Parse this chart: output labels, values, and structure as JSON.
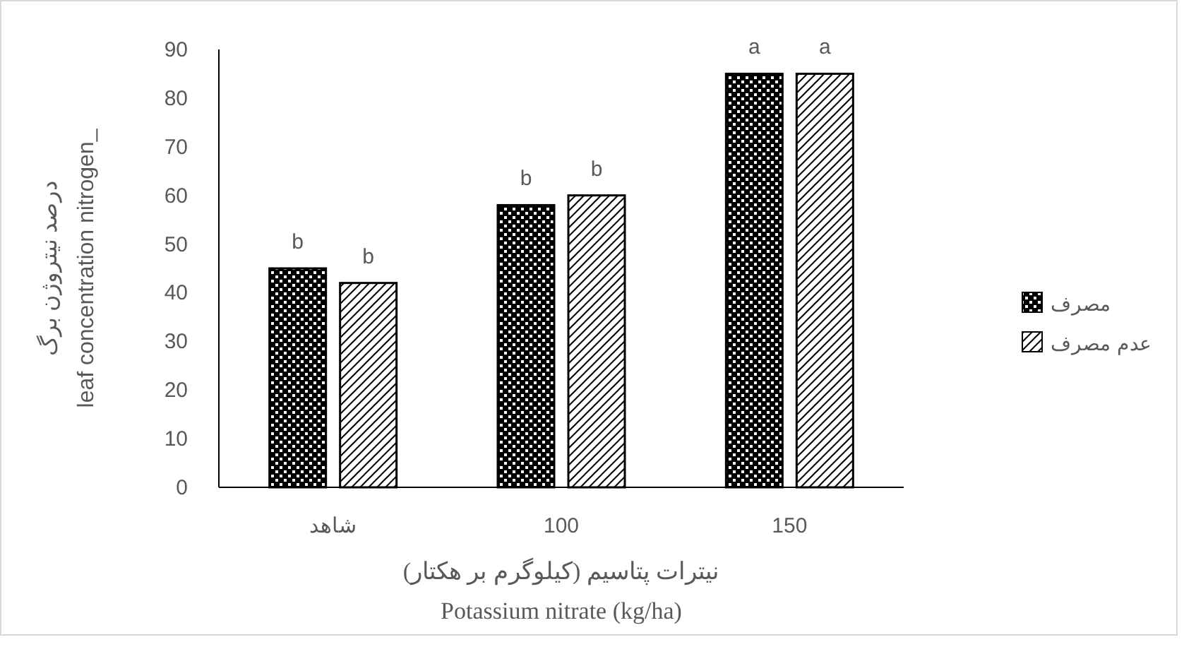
{
  "chart_data": {
    "type": "bar",
    "xlabel": "نیترات پتاسیم (کیلوگرم بر هکتار)\nPotassium nitrate (kg/ha)",
    "ylabel": "درصد نیتروژن برگ\nleaf concentration nitrogen_",
    "categories": [
      "شاهد",
      "100",
      "150"
    ],
    "series": [
      {
        "name": "مصرف",
        "color": "#000000",
        "values": [
          45,
          58,
          85
        ],
        "value_labels": [
          "b",
          "b",
          "a"
        ]
      },
      {
        "name": "عدم مصرف",
        "color": "#000000",
        "values": [
          42,
          60,
          85
        ],
        "value_labels": [
          "b",
          "b",
          "a"
        ]
      }
    ],
    "ylim": [
      0,
      90
    ],
    "yticks": [
      0,
      10,
      20,
      30,
      40,
      50,
      60,
      70,
      80,
      90
    ],
    "grid": false,
    "legend": "right"
  }
}
